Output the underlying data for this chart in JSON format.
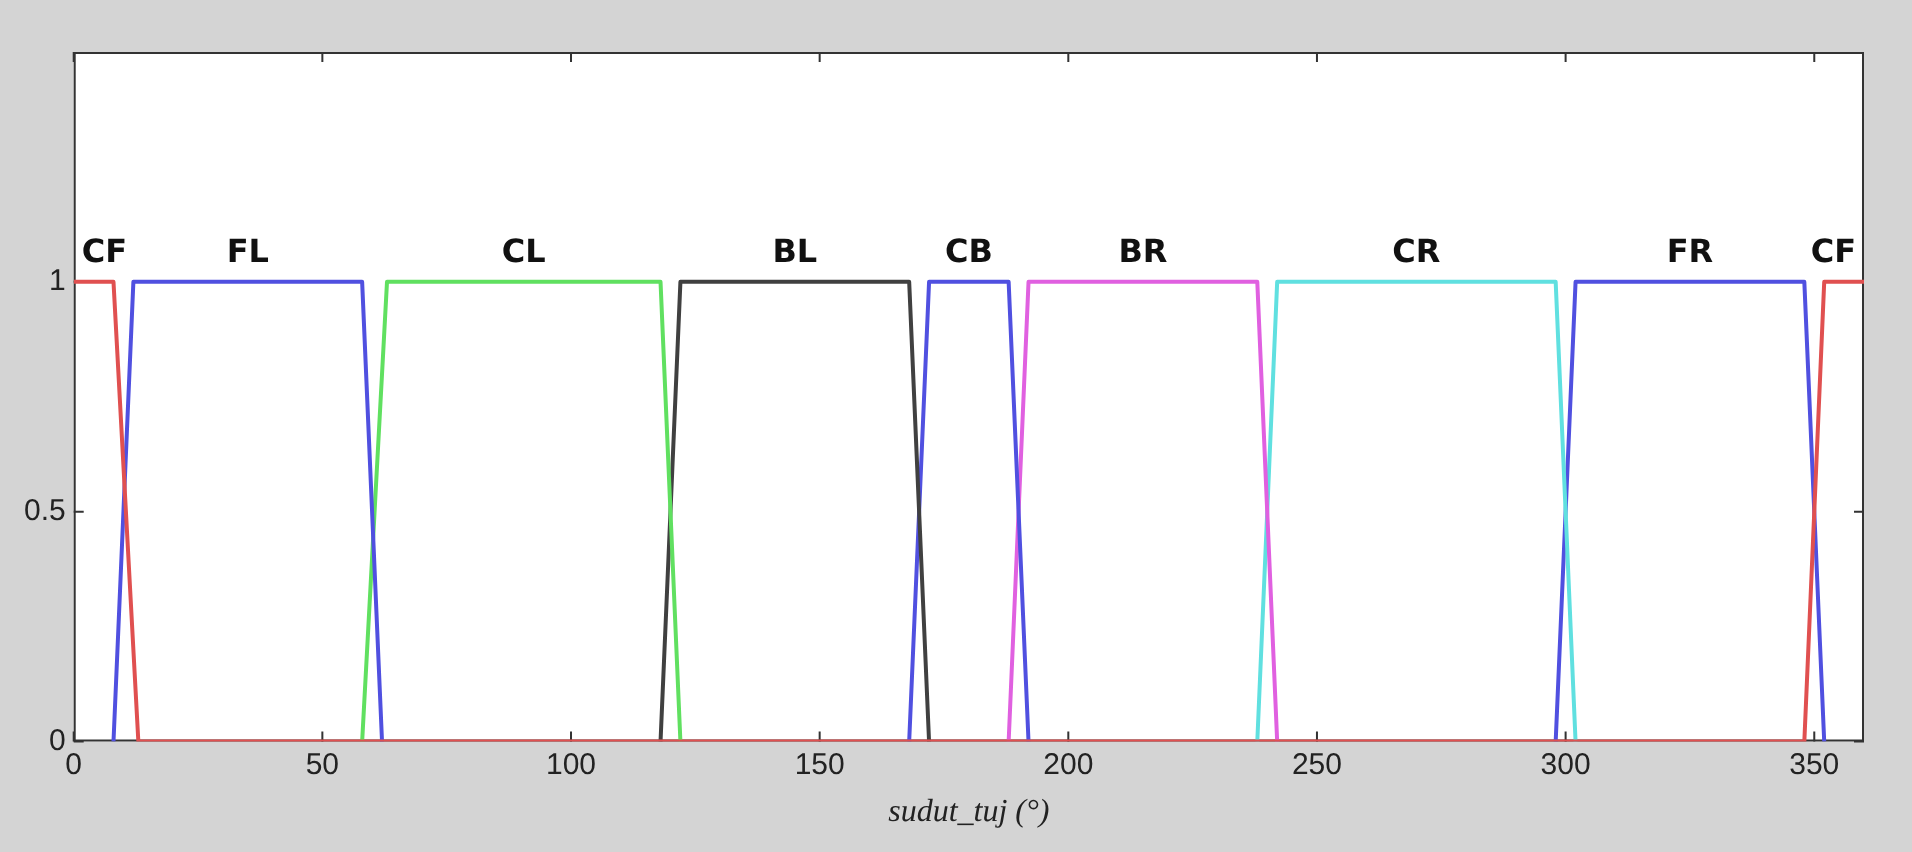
{
  "chart_data": {
    "type": "line",
    "xlabel": "sudut_tuj (°)",
    "xlim": [
      0,
      360
    ],
    "ylim": [
      0,
      1.5
    ],
    "xticks": [
      0,
      50,
      100,
      150,
      200,
      250,
      300,
      350
    ],
    "yticks": [
      0,
      0.5,
      1
    ],
    "grid": false,
    "legend": false,
    "marker": "none",
    "line_style": "solid",
    "series": [
      {
        "name": "CF",
        "color": "#e05050",
        "x": [
          0,
          8,
          13,
          348,
          352,
          360
        ],
        "values": [
          1,
          1,
          0,
          0,
          1,
          1
        ]
      },
      {
        "name": "FL",
        "color": "#5050e0",
        "x": [
          8,
          12,
          58,
          62
        ],
        "values": [
          0,
          1,
          1,
          0
        ]
      },
      {
        "name": "CL",
        "color": "#60e060",
        "x": [
          58,
          63,
          118,
          122
        ],
        "values": [
          0,
          1,
          1,
          0
        ]
      },
      {
        "name": "BL",
        "color": "#404040",
        "x": [
          118,
          122,
          168,
          172
        ],
        "values": [
          0,
          1,
          1,
          0
        ]
      },
      {
        "name": "CB",
        "color": "#5050e0",
        "x": [
          168,
          172,
          188,
          192
        ],
        "values": [
          0,
          1,
          1,
          0
        ]
      },
      {
        "name": "BR",
        "color": "#e060e0",
        "x": [
          188,
          192,
          238,
          242
        ],
        "values": [
          0,
          1,
          1,
          0
        ]
      },
      {
        "name": "CR",
        "color": "#60e0e0",
        "x": [
          238,
          242,
          298,
          302
        ],
        "values": [
          0,
          1,
          1,
          0
        ]
      },
      {
        "name": "FR",
        "color": "#5050e0",
        "x": [
          298,
          302,
          348,
          352
        ],
        "values": [
          0,
          1,
          1,
          0
        ]
      }
    ]
  }
}
